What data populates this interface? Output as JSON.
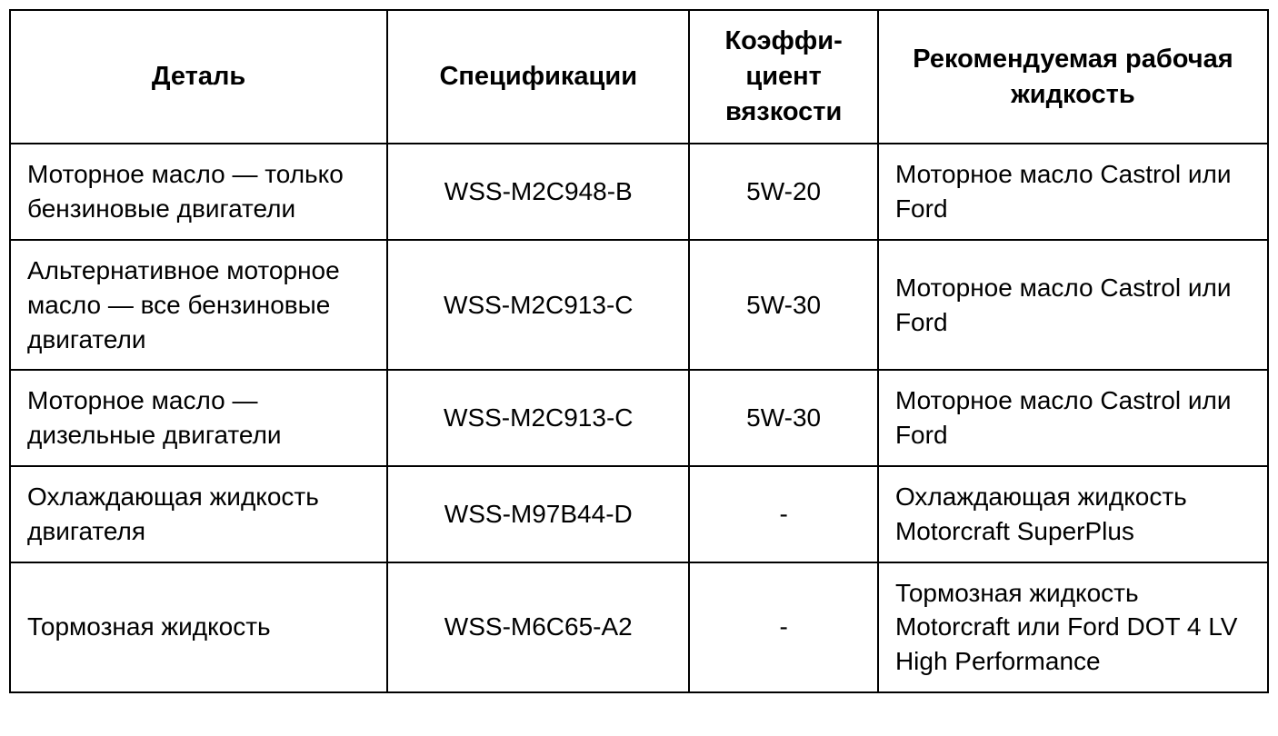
{
  "table": {
    "border_color": "#000000",
    "background_color": "#ffffff",
    "text_color": "#000000",
    "header_fontsize": 29,
    "body_fontsize": 28,
    "columns": [
      {
        "key": "part",
        "label": "Деталь",
        "align": "left",
        "header_align": "center",
        "width_pct": 30
      },
      {
        "key": "spec",
        "label": "Спецификации",
        "align": "center",
        "header_align": "center",
        "width_pct": 24
      },
      {
        "key": "visc",
        "label": "Коэффи­циент вязкости",
        "align": "center",
        "header_align": "center",
        "width_pct": 15
      },
      {
        "key": "rec",
        "label": "Рекомендуемая рабочая жидкость",
        "align": "left",
        "header_align": "center",
        "width_pct": 31
      }
    ],
    "rows": [
      {
        "part": "Моторное масло — только бензиновые двигатели",
        "spec": "WSS-M2C948-B",
        "visc": "5W-20",
        "rec": "Моторное масло Castrol или Ford"
      },
      {
        "part": "Альтернативное моторное масло — все бензиновые двигатели",
        "spec": "WSS-M2C913-C",
        "visc": "5W-30",
        "rec": "Моторное масло Castrol или Ford"
      },
      {
        "part": "Моторное масло — дизельные двигатели",
        "spec": "WSS-M2C913-C",
        "visc": "5W-30",
        "rec": "Моторное масло Castrol или Ford"
      },
      {
        "part": "Охлаждающая жидкость двигателя",
        "spec": "WSS-M97B44-D",
        "visc": "-",
        "rec": "Охлаждающая жидкость Motorcraft SuperPlus"
      },
      {
        "part": "Тормозная жидкость",
        "spec": "WSS-M6C65-A2",
        "visc": "-",
        "rec": "Тормозная жидкость Motorcraft или Ford DOT 4 LV High Performance"
      }
    ]
  }
}
